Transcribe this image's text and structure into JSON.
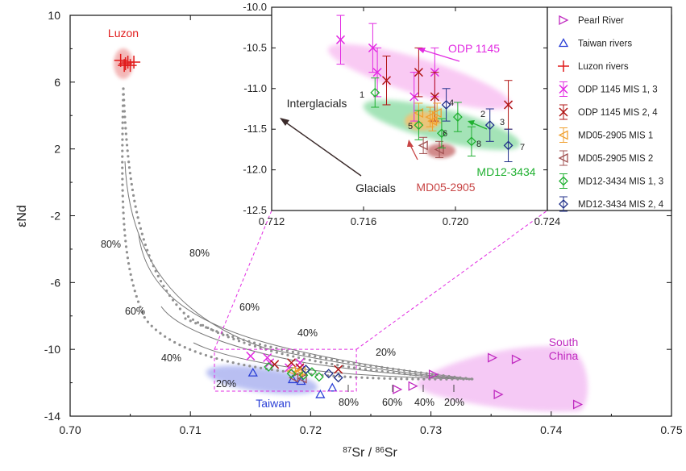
{
  "chart_data": {
    "type": "scatter",
    "main": {
      "xlabel_sup1": "87",
      "xlabel_sr1": "Sr / ",
      "xlabel_sup2": "86",
      "xlabel_sr2": "Sr",
      "ylabel": "εNd",
      "xlim": [
        0.7,
        0.75
      ],
      "ylim": [
        -14,
        10
      ],
      "xticks": [
        "0.70",
        "0.71",
        "0.72",
        "0.73",
        "0.74",
        "0.75"
      ],
      "yticks": [
        "10",
        "6",
        "2",
        "-2",
        "-6",
        "-10",
        "-14"
      ],
      "region_labels": [
        {
          "text": "Luzon",
          "color": "#e11b1b"
        },
        {
          "text": "Taiwan",
          "color": "#2a3fd6"
        },
        {
          "text": "South",
          "color": "#c02bc0"
        },
        {
          "text": "China",
          "color": "#c02bc0"
        }
      ],
      "mixing_labels": [
        "80%",
        "80%",
        "60%",
        "60%",
        "40%",
        "40%",
        "20%",
        "20%",
        "80%",
        "60%",
        "40%",
        "20%"
      ],
      "series": [
        {
          "name": "Pearl River",
          "marker": "triangle-right",
          "color": "#c02bc0",
          "points": [
            [
              0.7272,
              -12.4
            ],
            [
              0.7285,
              -12.2
            ],
            [
              0.7302,
              -11.5
            ],
            [
              0.7351,
              -10.5
            ],
            [
              0.7371,
              -10.6
            ],
            [
              0.7356,
              -12.7
            ],
            [
              0.7422,
              -13.3
            ]
          ]
        },
        {
          "name": "Taiwan rivers",
          "marker": "triangle-up",
          "color": "#2a3fd6",
          "points": [
            [
              0.7152,
              -11.4
            ],
            [
              0.7185,
              -11.8
            ],
            [
              0.7192,
              -11.9
            ],
            [
              0.7208,
              -12.7
            ],
            [
              0.7218,
              -12.3
            ]
          ]
        },
        {
          "name": "Luzon rivers",
          "marker": "plus",
          "color": "#e11b1b",
          "points": [
            [
              0.7042,
              7.3
            ],
            [
              0.7046,
              7.1
            ],
            [
              0.7048,
              7.2
            ],
            [
              0.705,
              7.0
            ],
            [
              0.7053,
              7.2
            ],
            [
              0.7045,
              7.0
            ]
          ]
        },
        {
          "name": "ODP 1145 MIS 1, 3",
          "marker": "x",
          "color": "#e22be2",
          "points": [
            [
              0.715,
              -10.4
            ],
            [
              0.7164,
              -10.5
            ],
            [
              0.7166,
              -10.8
            ],
            [
              0.7182,
              -11.1
            ],
            [
              0.7191,
              -10.8
            ]
          ]
        },
        {
          "name": "ODP 1145 MIS 2, 4",
          "marker": "x",
          "color": "#b01414",
          "points": [
            [
              0.717,
              -10.9
            ],
            [
              0.7184,
              -10.8
            ],
            [
              0.7191,
              -11.1
            ],
            [
              0.7223,
              -11.2
            ]
          ]
        },
        {
          "name": "MD05-2905 MIS 1",
          "marker": "triangle-left",
          "color": "#f0a030",
          "points": [
            [
              0.7184,
              -11.3
            ],
            [
              0.7189,
              -11.35
            ],
            [
              0.719,
              -11.4
            ],
            [
              0.7192,
              -11.3
            ]
          ]
        },
        {
          "name": "MD05-2905 MIS 2",
          "marker": "triangle-left",
          "color": "#a05050",
          "points": [
            [
              0.7186,
              -11.7
            ],
            [
              0.7193,
              -11.75
            ]
          ]
        },
        {
          "name": "MD12-3434 MIS 1, 3",
          "marker": "diamond",
          "color": "#1fb030",
          "points": [
            [
              0.7165,
              -11.05
            ],
            [
              0.7184,
              -11.45
            ],
            [
              0.7194,
              -11.55
            ],
            [
              0.7201,
              -11.35
            ],
            [
              0.7207,
              -11.65
            ]
          ]
        },
        {
          "name": "MD12-3434 MIS 2, 4",
          "marker": "diamond",
          "color": "#20308a",
          "points": [
            [
              0.7196,
              -11.2
            ],
            [
              0.7215,
              -11.45
            ],
            [
              0.7223,
              -11.7
            ]
          ]
        }
      ]
    },
    "inset": {
      "xlim": [
        0.712,
        0.724
      ],
      "ylim": [
        -12.5,
        -10.0
      ],
      "xticks": [
        "0.712",
        "0.716",
        "0.720",
        "0.724"
      ],
      "yticks": [
        "-10.0",
        "-10.5",
        "-11.0",
        "-11.5",
        "-12.0",
        "-12.5"
      ],
      "labels": {
        "odp": "ODP 1145",
        "interglacials": "Interglacials",
        "glacials": "Glacials",
        "md05": "MD05-2905",
        "md12": "MD12-3434"
      },
      "point_numbers": [
        "1",
        "2",
        "3",
        "4",
        "5",
        "6",
        "7",
        "8"
      ]
    },
    "legend": {
      "placement": "right",
      "entries": [
        "Pearl River",
        "Taiwan rivers",
        "Luzon rivers",
        "ODP 1145 MIS 1, 3",
        "ODP 1145 MIS 2, 4",
        "MD05-2905 MIS 1",
        "MD05-2905 MIS 2",
        "MD12-3434 MIS 1, 3",
        "MD12-3434 MIS 2, 4"
      ]
    }
  }
}
